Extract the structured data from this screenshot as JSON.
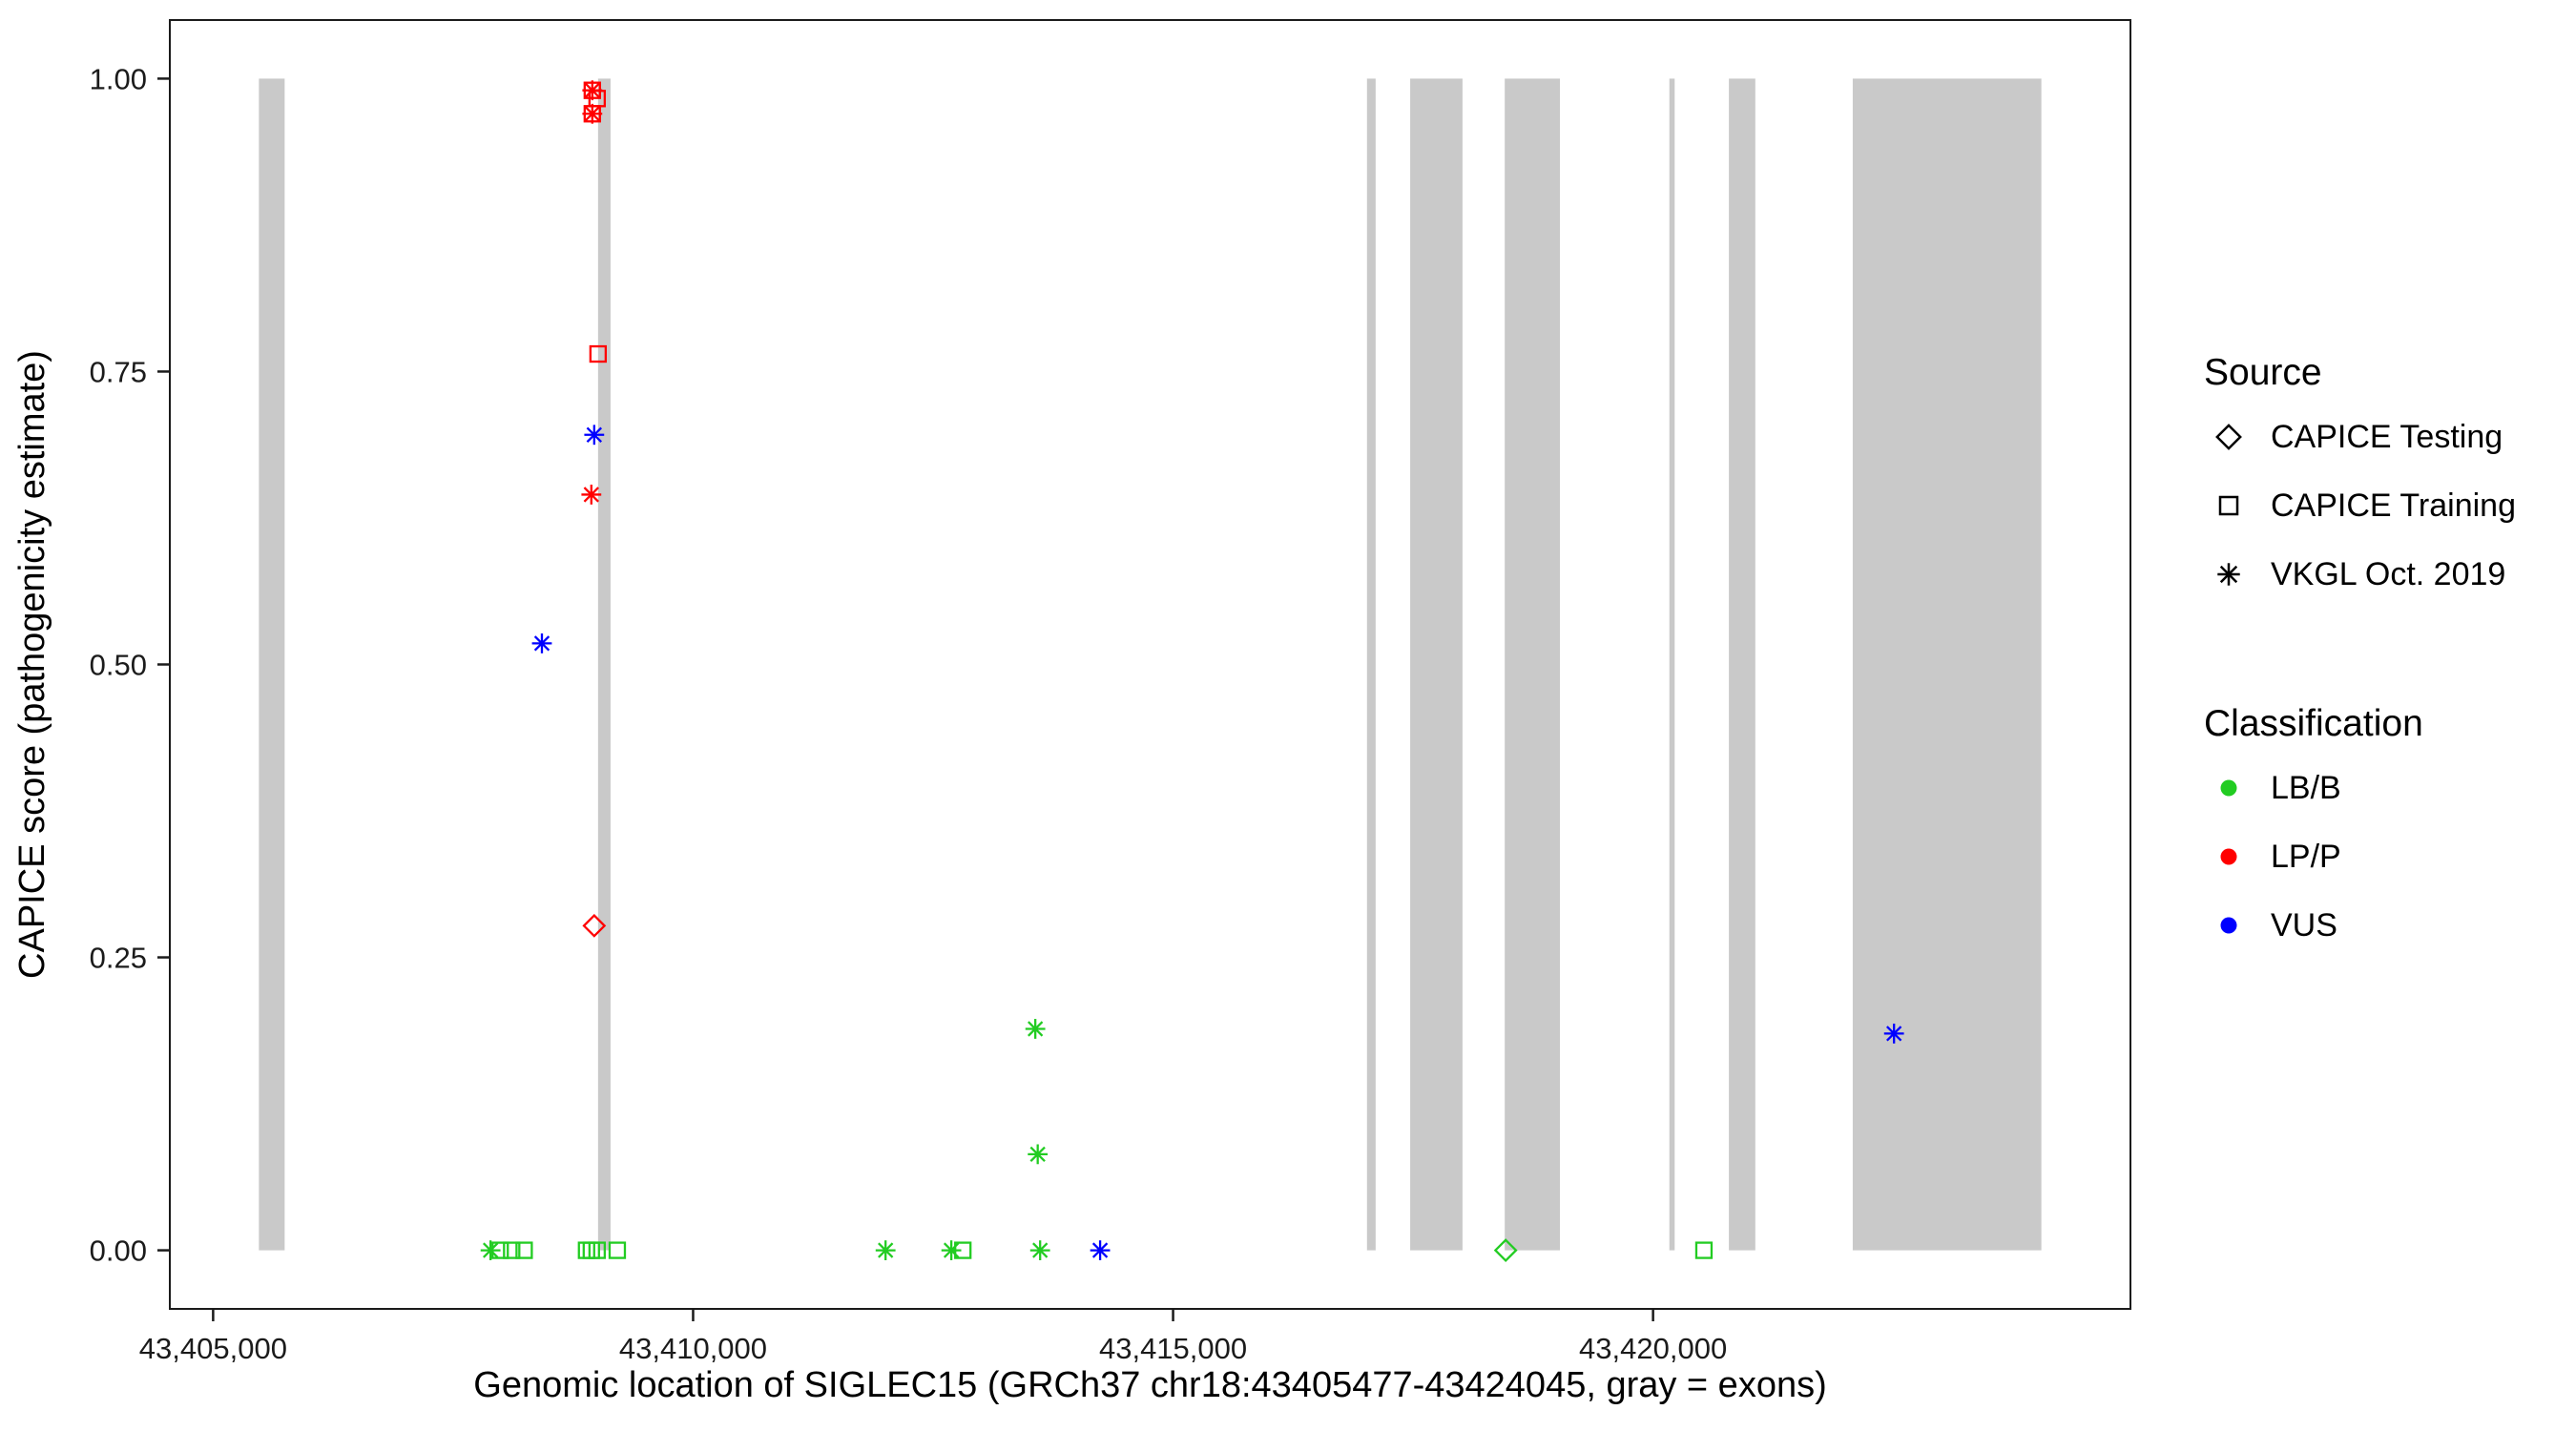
{
  "chart_data": {
    "type": "scatter",
    "title": "",
    "xlabel": "Genomic location of SIGLEC15 (GRCh37 chr18:43405477-43424045, gray = exons)",
    "ylabel": "CAPICE score (pathogenicity estimate)",
    "xlim": [
      43404549,
      43424973
    ],
    "ylim": [
      -0.05,
      1.05
    ],
    "x_ticks": [
      {
        "value": 43405000,
        "label": "43,405,000"
      },
      {
        "value": 43410000,
        "label": "43,410,000"
      },
      {
        "value": 43415000,
        "label": "43,415,000"
      },
      {
        "value": 43420000,
        "label": "43,420,000"
      }
    ],
    "y_ticks": [
      {
        "value": 0.0,
        "label": "0.00"
      },
      {
        "value": 0.25,
        "label": "0.25"
      },
      {
        "value": 0.5,
        "label": "0.50"
      },
      {
        "value": 0.75,
        "label": "0.75"
      },
      {
        "value": 1.0,
        "label": "1.00"
      }
    ],
    "exon_color": "#c9c9c9",
    "exons": [
      [
        43405477,
        43405745
      ],
      [
        43409010,
        43409140
      ],
      [
        43417020,
        43417110
      ],
      [
        43417470,
        43418015
      ],
      [
        43418455,
        43419030
      ],
      [
        43420170,
        43420225
      ],
      [
        43420790,
        43421065
      ],
      [
        43422080,
        43424045
      ]
    ],
    "points": [
      {
        "x": 43408950,
        "y": 0.99,
        "source": "CAPICE Training",
        "classification": "LP/P"
      },
      {
        "x": 43409000,
        "y": 0.983,
        "source": "CAPICE Training",
        "classification": "LP/P"
      },
      {
        "x": 43408950,
        "y": 0.97,
        "source": "CAPICE Training",
        "classification": "LP/P"
      },
      {
        "x": 43408950,
        "y": 0.99,
        "source": "VKGL Oct. 2019",
        "classification": "LP/P"
      },
      {
        "x": 43408950,
        "y": 0.97,
        "source": "VKGL Oct. 2019",
        "classification": "LP/P"
      },
      {
        "x": 43409010,
        "y": 0.765,
        "source": "CAPICE Training",
        "classification": "LP/P"
      },
      {
        "x": 43408970,
        "y": 0.696,
        "source": "VKGL Oct. 2019",
        "classification": "VUS"
      },
      {
        "x": 43408940,
        "y": 0.645,
        "source": "VKGL Oct. 2019",
        "classification": "LP/P"
      },
      {
        "x": 43408425,
        "y": 0.518,
        "source": "VKGL Oct. 2019",
        "classification": "VUS"
      },
      {
        "x": 43408970,
        "y": 0.277,
        "source": "CAPICE Testing",
        "classification": "LP/P"
      },
      {
        "x": 43413565,
        "y": 0.189,
        "source": "VKGL Oct. 2019",
        "classification": "LB/B"
      },
      {
        "x": 43413590,
        "y": 0.082,
        "source": "VKGL Oct. 2019",
        "classification": "LB/B"
      },
      {
        "x": 43407890,
        "y": 0.0,
        "source": "VKGL Oct. 2019",
        "classification": "LB/B"
      },
      {
        "x": 43407990,
        "y": 0.0,
        "source": "CAPICE Training",
        "classification": "LB/B"
      },
      {
        "x": 43408110,
        "y": 0.0,
        "source": "CAPICE Training",
        "classification": "LB/B"
      },
      {
        "x": 43408240,
        "y": 0.0,
        "source": "CAPICE Training",
        "classification": "LB/B"
      },
      {
        "x": 43408890,
        "y": 0.0,
        "source": "CAPICE Training",
        "classification": "LB/B"
      },
      {
        "x": 43408940,
        "y": 0.0,
        "source": "CAPICE Training",
        "classification": "LB/B"
      },
      {
        "x": 43409000,
        "y": 0.0,
        "source": "CAPICE Training",
        "classification": "LB/B"
      },
      {
        "x": 43409210,
        "y": 0.0,
        "source": "CAPICE Training",
        "classification": "LB/B"
      },
      {
        "x": 43412005,
        "y": 0.0,
        "source": "VKGL Oct. 2019",
        "classification": "LB/B"
      },
      {
        "x": 43412690,
        "y": 0.0,
        "source": "VKGL Oct. 2019",
        "classification": "LB/B"
      },
      {
        "x": 43412810,
        "y": 0.0,
        "source": "CAPICE Training",
        "classification": "LB/B"
      },
      {
        "x": 43413615,
        "y": 0.0,
        "source": "VKGL Oct. 2019",
        "classification": "LB/B"
      },
      {
        "x": 43414240,
        "y": 0.0,
        "source": "VKGL Oct. 2019",
        "classification": "VUS"
      },
      {
        "x": 43418465,
        "y": 0.0,
        "source": "CAPICE Testing",
        "classification": "LB/B"
      },
      {
        "x": 43420530,
        "y": 0.0,
        "source": "CAPICE Training",
        "classification": "LB/B"
      },
      {
        "x": 43422510,
        "y": 0.185,
        "source": "VKGL Oct. 2019",
        "classification": "VUS"
      }
    ]
  },
  "colors": {
    "LB/B": "#22cc22",
    "LP/P": "#ff0000",
    "VUS": "#0000ff"
  },
  "shapes": {
    "CAPICE Testing": "diamond",
    "CAPICE Training": "square",
    "VKGL Oct. 2019": "asterisk"
  },
  "legend": {
    "groups": [
      {
        "id": "source",
        "title": "Source",
        "items": [
          {
            "label": "CAPICE Testing",
            "shape": "diamond"
          },
          {
            "label": "CAPICE Training",
            "shape": "square"
          },
          {
            "label": "VKGL Oct. 2019",
            "shape": "asterisk"
          }
        ]
      },
      {
        "id": "classification",
        "title": "Classification",
        "items": [
          {
            "label": "LB/B",
            "color": "#22cc22"
          },
          {
            "label": "LP/P",
            "color": "#ff0000"
          },
          {
            "label": "VUS",
            "color": "#0000ff"
          }
        ]
      }
    ]
  }
}
